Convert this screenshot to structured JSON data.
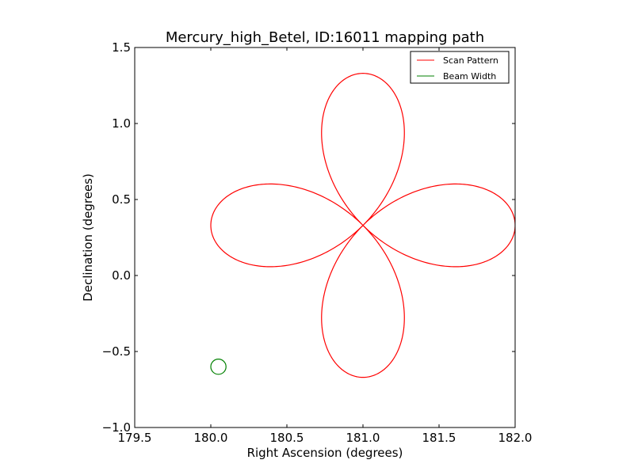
{
  "chart_data": {
    "type": "line",
    "title": "Mercury_high_Betel, ID:16011 mapping path",
    "xlabel": "Right Ascension (degrees)",
    "ylabel": "Declination (degrees)",
    "xlim": [
      179.5,
      182.0
    ],
    "ylim": [
      -1.0,
      1.5
    ],
    "xticks": [
      179.5,
      180.0,
      180.5,
      181.0,
      181.5,
      182.0
    ],
    "xtick_labels": [
      "179.5",
      "180.0",
      "180.5",
      "181.0",
      "181.5",
      "182.0"
    ],
    "yticks": [
      -1.0,
      -0.5,
      0.0,
      0.5,
      1.0,
      1.5
    ],
    "ytick_labels": [
      "−1.0",
      "−0.5",
      "0.0",
      "0.5",
      "1.0",
      "1.5"
    ],
    "grid": false,
    "legend_position": "top-right",
    "series": [
      {
        "name": "Scan Pattern",
        "color": "#ff0000",
        "shape": "four-leaf rose",
        "center": [
          181.0,
          0.33
        ],
        "radius": 1.0
      },
      {
        "name": "Beam Width",
        "color": "#008000",
        "shape": "circle",
        "center": [
          180.05,
          -0.6
        ],
        "radius": 0.05
      }
    ]
  }
}
